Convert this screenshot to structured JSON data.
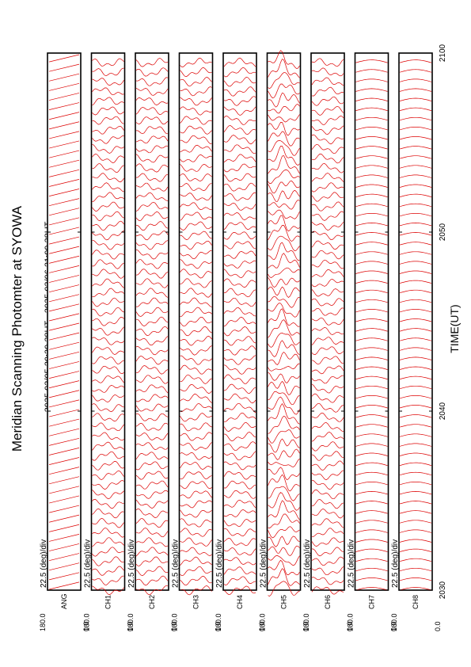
{
  "title": "Meridian Scanning Photomter at SYOWA",
  "period": "2025 03/05 20:30 28UT - 2025 03/06 21:00 28UT",
  "xlabel": "TIME(UT)",
  "colors": {
    "trace": "#dd0000",
    "frame": "#000000",
    "background": "#ffffff"
  },
  "chart_data": {
    "type": "line",
    "x_axis": {
      "label": "TIME(UT)",
      "range": [
        "2030",
        "2100"
      ],
      "ticks": [
        "2030",
        "2040",
        "2050",
        "2100"
      ]
    },
    "y_axis": {
      "range": [
        0.0,
        180.0
      ],
      "tick_labels": [
        "180.0",
        "0.0"
      ],
      "unit": "deg"
    },
    "panels": [
      {
        "channel": "ANG",
        "scale": "22.5 (deg)/div",
        "y_top": "180.0",
        "y_bottom": "0.0",
        "style": "angle"
      },
      {
        "channel": "CH1",
        "scale": "22.5 (deg)/div",
        "y_top": "180.0",
        "y_bottom": "0.0",
        "style": "noisy"
      },
      {
        "channel": "CH2",
        "scale": "22.5 (deg)/div",
        "y_top": "180.0",
        "y_bottom": "0.0",
        "style": "noisy"
      },
      {
        "channel": "CH3",
        "scale": "22.5 (deg)/div",
        "y_top": "180.0",
        "y_bottom": "0.0",
        "style": "noisy"
      },
      {
        "channel": "CH4",
        "scale": "22.5 (deg)/div",
        "y_top": "180.0",
        "y_bottom": "0.0",
        "style": "noisy"
      },
      {
        "channel": "CH5",
        "scale": "22.5 (deg)/div",
        "y_top": "180.0",
        "y_bottom": "0.0",
        "style": "peaked"
      },
      {
        "channel": "CH6",
        "scale": "22.5 (deg)/div",
        "y_top": "180.0",
        "y_bottom": "0.0",
        "style": "noisy"
      },
      {
        "channel": "CH7",
        "scale": "22.5 (deg)/div",
        "y_top": "180.0",
        "y_bottom": "0.0",
        "style": "smooth"
      },
      {
        "channel": "CH8",
        "scale": "22.5 (deg)/div",
        "y_top": "180.0",
        "y_bottom": "0.0",
        "style": "smooth"
      }
    ]
  }
}
